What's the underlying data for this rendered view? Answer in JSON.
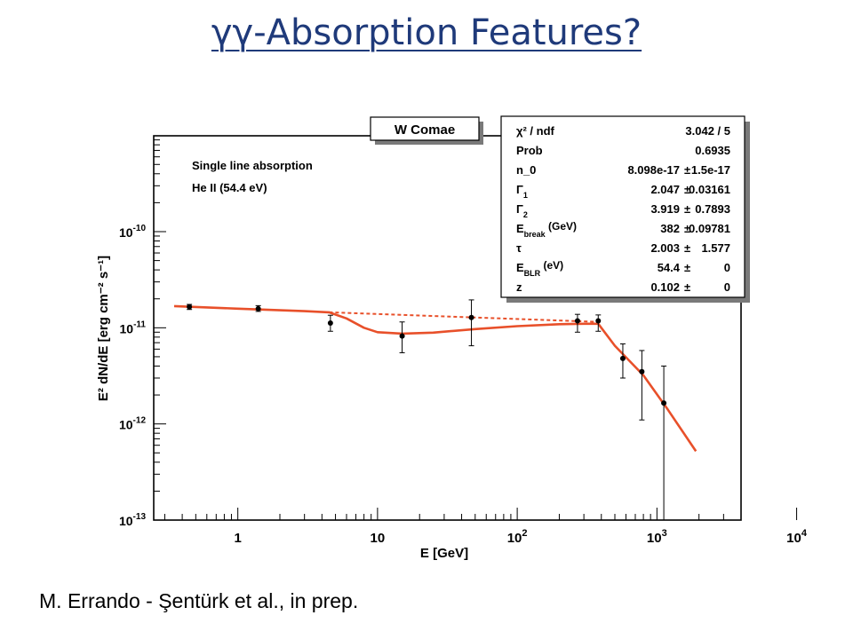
{
  "slide": {
    "title": "γγ-Absorption Features?",
    "citation": "M. Errando - Şentürk et al., in prep."
  },
  "chart_data": {
    "type": "scatter",
    "title": "W Comae",
    "xlabel": "E [GeV]",
    "ylabel": "E² dN/dE [erg cm⁻² s⁻¹]",
    "xscale": "log",
    "yscale": "log",
    "xlim": [
      0.25,
      4000
    ],
    "ylim": [
      1e-13,
      1e-09
    ],
    "grid": false,
    "x_ticks": [
      {
        "value": 1,
        "label": "1"
      },
      {
        "value": 10,
        "label": "10"
      },
      {
        "value": 100,
        "base": "10",
        "exp": "2"
      },
      {
        "value": 1000,
        "base": "10",
        "exp": "3"
      },
      {
        "value": 10000,
        "base": "10",
        "exp": "4"
      }
    ],
    "y_ticks": [
      {
        "value": 1e-13,
        "base": "10",
        "exp": "-13"
      },
      {
        "value": 1e-12,
        "base": "10",
        "exp": "-12"
      },
      {
        "value": 1e-11,
        "base": "10",
        "exp": "-11"
      },
      {
        "value": 1e-10,
        "base": "10",
        "exp": "-10"
      }
    ],
    "annotations": [
      "Single line absorption",
      "He II (54.4 eV)"
    ],
    "colors": {
      "model": "#e8502a",
      "points": "#000000"
    },
    "series": [
      {
        "type": "scatter",
        "points": [
          {
            "x": 0.45,
            "y": 1.65e-11,
            "ylo": 1.55e-11,
            "yhi": 1.75e-11
          },
          {
            "x": 1.4,
            "y": 1.58e-11,
            "ylo": 1.48e-11,
            "yhi": 1.7e-11
          },
          {
            "x": 4.6,
            "y": 1.12e-11,
            "ylo": 9.2e-12,
            "yhi": 1.35e-11
          },
          {
            "x": 15,
            "y": 8.2e-12,
            "ylo": 5.5e-12,
            "yhi": 1.15e-11
          },
          {
            "x": 47,
            "y": 1.28e-11,
            "ylo": 6.5e-12,
            "yhi": 1.95e-11
          },
          {
            "x": 270,
            "y": 1.18e-11,
            "ylo": 9e-12,
            "yhi": 1.38e-11
          },
          {
            "x": 380,
            "y": 1.18e-11,
            "ylo": 9.2e-12,
            "yhi": 1.36e-11
          },
          {
            "x": 570,
            "y": 4.8e-12,
            "ylo": 3e-12,
            "yhi": 6.8e-12
          },
          {
            "x": 780,
            "y": 3.5e-12,
            "ylo": 1.1e-12,
            "yhi": 5.8e-12
          },
          {
            "x": 1120,
            "y": 1.65e-12,
            "ylo": 1e-13,
            "yhi": 4e-12
          }
        ]
      },
      {
        "type": "line",
        "style": "solid",
        "x": [
          0.35,
          1,
          3,
          4.5,
          6,
          8,
          10,
          15,
          25,
          50,
          100,
          200,
          300,
          380,
          500,
          800,
          1200,
          1900
        ],
        "y": [
          1.68e-11,
          1.58e-11,
          1.49e-11,
          1.45e-11,
          1.25e-11,
          1e-11,
          9e-12,
          8.7e-12,
          8.9e-12,
          9.7e-12,
          1.04e-11,
          1.09e-11,
          1.1e-11,
          1.1e-11,
          6.5e-12,
          3.2e-12,
          1.4e-12,
          5.2e-13
        ]
      },
      {
        "type": "line",
        "style": "dashed",
        "x": [
          4.5,
          400
        ],
        "y": [
          1.45e-11,
          1.15e-11
        ]
      }
    ],
    "stats": [
      {
        "name": "χ² / ndf",
        "value": "3.042 / 5"
      },
      {
        "name": "Prob",
        "value": "0.6935"
      },
      {
        "name": "n_0",
        "value": "8.098e-17",
        "pm": "±",
        "err": "1.5e-17"
      },
      {
        "name": "Γ",
        "sub": "1",
        "value": "2.047",
        "pm": "±",
        "err": "0.03161"
      },
      {
        "name": "Γ",
        "sub": "2",
        "value": "3.919",
        "pm": "±",
        "err": "0.7893"
      },
      {
        "name": "E",
        "sub": "break",
        "unit": "(GeV)",
        "value": "382",
        "pm": "±",
        "err": "0.09781"
      },
      {
        "name": "τ",
        "value": "2.003",
        "pm": "±",
        "err": "1.577"
      },
      {
        "name": "E",
        "sub": "BLR",
        "unit": "(eV)",
        "value": "54.4",
        "pm": "±",
        "err": "0"
      },
      {
        "name": "z",
        "value": "0.102",
        "pm": "±",
        "err": "0"
      }
    ]
  }
}
